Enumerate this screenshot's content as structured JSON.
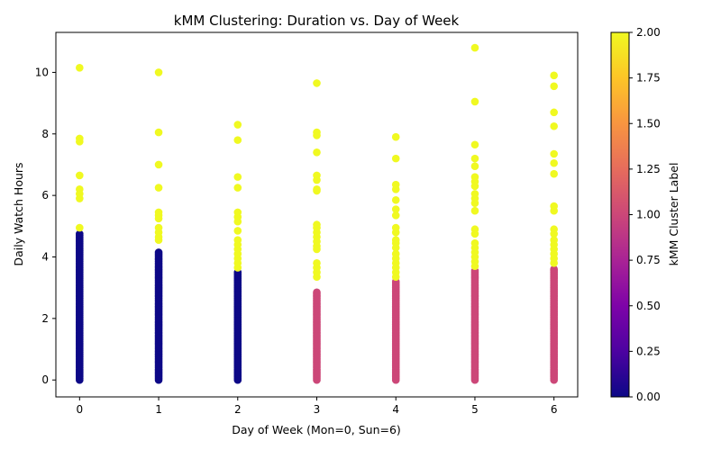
{
  "chart_data": {
    "type": "scatter",
    "title": "kMM Clustering: Duration vs. Day of Week",
    "xlabel": "Day of Week (Mon=0, Sun=6)",
    "ylabel": "Daily Watch Hours",
    "colorbar_label": "kMM Cluster Label",
    "colormap": "plasma",
    "xlim": [
      -0.3,
      6.3
    ],
    "ylim": [
      -0.55,
      11.3
    ],
    "xticks": [
      "0",
      "1",
      "2",
      "3",
      "4",
      "5",
      "6"
    ],
    "yticks": [
      "0",
      "2",
      "4",
      "6",
      "8",
      "10"
    ],
    "colorbar_range": [
      0.0,
      2.0
    ],
    "colorbar_ticks": [
      "0.00",
      "0.25",
      "0.50",
      "0.75",
      "1.00",
      "1.25",
      "1.50",
      "1.75",
      "2.00"
    ],
    "legend": "none",
    "grid": false,
    "clusters": [
      {
        "label": 0,
        "color": "#0d0887"
      },
      {
        "label": 1,
        "color": "#cc4778"
      },
      {
        "label": 2,
        "color": "#f0f921"
      }
    ],
    "series": [
      {
        "x": 0,
        "cluster0_ymax": 4.75,
        "cluster1_ymax": null,
        "cluster2_points": [
          4.95,
          5.9,
          6.05,
          6.2,
          6.65,
          7.75,
          7.85,
          10.15
        ]
      },
      {
        "x": 1,
        "cluster0_ymax": 4.15,
        "cluster1_ymax": null,
        "cluster2_points": [
          4.55,
          4.65,
          4.8,
          4.95,
          5.25,
          5.35,
          5.45,
          6.25,
          7.0,
          8.05,
          10.0
        ]
      },
      {
        "x": 2,
        "cluster0_ymax": 3.5,
        "cluster1_ymax": null,
        "cluster2_points": [
          3.65,
          3.8,
          3.95,
          4.1,
          4.25,
          4.4,
          4.55,
          4.85,
          5.15,
          5.3,
          5.45,
          6.25,
          6.6,
          7.8,
          8.3
        ]
      },
      {
        "x": 3,
        "cluster0_ymax": null,
        "cluster1_ymax": 2.85,
        "cluster2_points": [
          3.35,
          3.5,
          3.65,
          3.8,
          4.25,
          4.35,
          4.5,
          4.65,
          4.8,
          4.95,
          5.05,
          6.15,
          6.2,
          6.5,
          6.65,
          7.4,
          7.95,
          8.05,
          9.65
        ]
      },
      {
        "x": 4,
        "cluster0_ymax": null,
        "cluster1_ymax": 3.2,
        "cluster2_points": [
          3.35,
          3.5,
          3.65,
          3.8,
          3.95,
          4.1,
          4.3,
          4.45,
          4.55,
          4.8,
          4.95,
          5.35,
          5.55,
          5.85,
          6.2,
          6.35,
          7.2,
          7.9
        ]
      },
      {
        "x": 5,
        "cluster0_ymax": null,
        "cluster1_ymax": 3.55,
        "cluster2_points": [
          3.7,
          3.85,
          4.0,
          4.15,
          4.3,
          4.45,
          4.75,
          4.9,
          5.5,
          5.75,
          5.9,
          6.05,
          6.3,
          6.45,
          6.6,
          6.95,
          7.2,
          7.65,
          9.05,
          10.8
        ]
      },
      {
        "x": 6,
        "cluster0_ymax": null,
        "cluster1_ymax": 3.6,
        "cluster2_points": [
          3.8,
          3.95,
          4.1,
          4.25,
          4.4,
          4.55,
          4.75,
          4.9,
          5.5,
          5.65,
          6.7,
          7.05,
          7.35,
          8.25,
          8.7,
          9.55,
          9.9
        ]
      }
    ]
  }
}
